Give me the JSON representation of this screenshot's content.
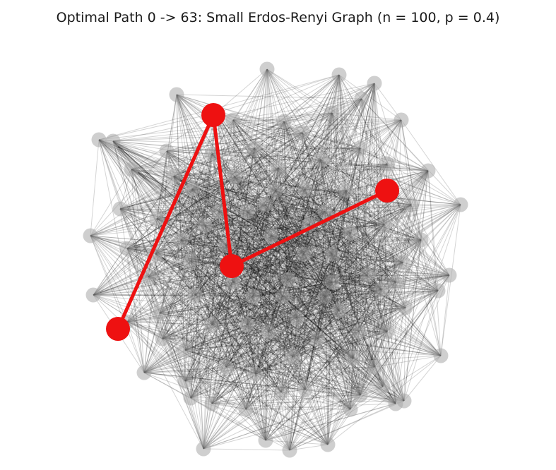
{
  "figure": {
    "title": "Optimal Path 0 -> 63: Small Erdos-Renyi Graph (n = 100, p = 0.4)"
  },
  "graph": {
    "type": "erdos-renyi",
    "n": 100,
    "p": 0.4,
    "source": 0,
    "target": 63,
    "path_hops": 4,
    "node_color": "#a8a8a8",
    "edge_color": "#000000",
    "path_color": "#ee1111"
  }
}
